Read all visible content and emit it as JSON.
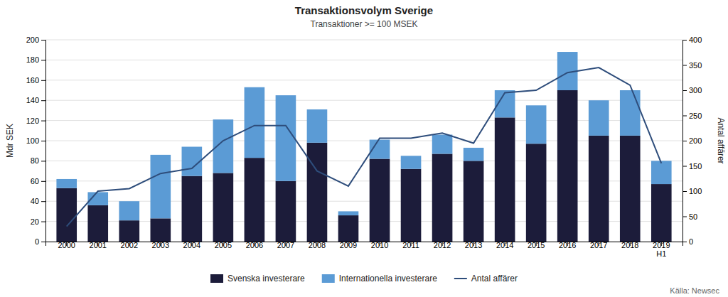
{
  "chart_data": {
    "type": "bar",
    "title": "Transaktionsvolym Sverige",
    "subtitle": "Transaktioner >= 100 MSEK",
    "categories": [
      "2000",
      "2001",
      "2002",
      "2003",
      "2004",
      "2005",
      "2006",
      "2007",
      "2008",
      "2009",
      "2010",
      "2011",
      "2012",
      "2013",
      "2014",
      "2015",
      "2016",
      "2017",
      "2018",
      "2019\nH1"
    ],
    "series": [
      {
        "name": "Svenska investerare",
        "color": "#1c1c3a",
        "values": [
          53,
          36,
          21,
          23,
          65,
          68,
          83,
          60,
          98,
          26,
          82,
          72,
          87,
          80,
          123,
          97,
          150,
          105,
          105,
          57
        ]
      },
      {
        "name": "Internationella investerare",
        "color": "#5b9bd5",
        "values": [
          9,
          13,
          19,
          63,
          29,
          53,
          70,
          85,
          33,
          4,
          19,
          13,
          19,
          13,
          27,
          38,
          38,
          35,
          45,
          23
        ]
      },
      {
        "name": "Antal affärer",
        "type": "line",
        "axis": "y2",
        "color": "#2e4d7b",
        "values": [
          30,
          100,
          105,
          135,
          145,
          200,
          230,
          230,
          140,
          110,
          205,
          205,
          215,
          195,
          295,
          300,
          335,
          345,
          310,
          155
        ]
      }
    ],
    "stacked": true,
    "ylabel": "Mdr SEK",
    "y2label": "Antal affärer",
    "ylim": [
      0,
      200
    ],
    "yticks": [
      0,
      20,
      40,
      60,
      80,
      100,
      120,
      140,
      160,
      180,
      200
    ],
    "y2lim": [
      0,
      400
    ],
    "y2ticks": [
      0,
      50,
      100,
      150,
      200,
      250,
      300,
      350,
      400
    ],
    "grid": true,
    "legend": "bottom",
    "source": "Källa: Newsec"
  }
}
